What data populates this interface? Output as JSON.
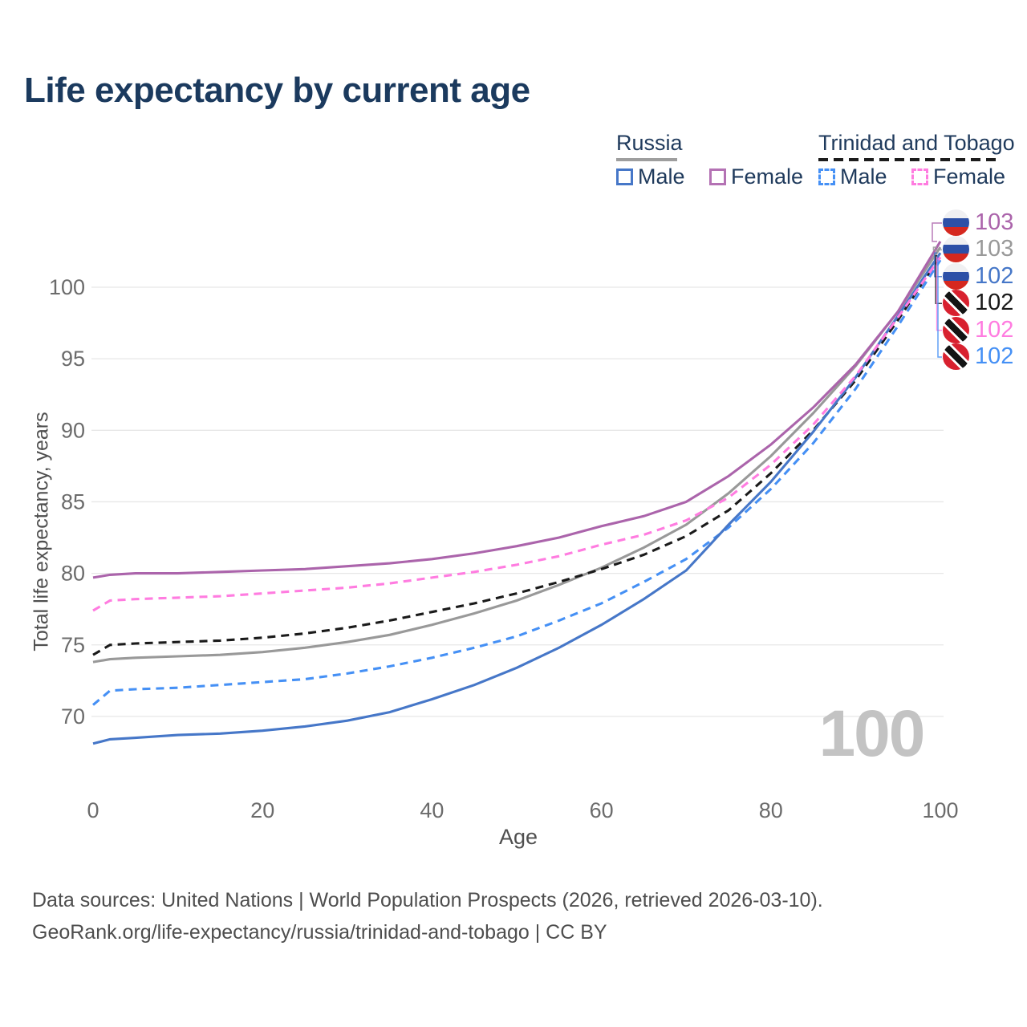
{
  "title": "Life expectancy by current age",
  "legend": {
    "groups": [
      {
        "country": "Russia",
        "line_style": "solid",
        "underline_color": "#9e9e9e",
        "items": [
          {
            "label": "Male",
            "color": "#4677c8"
          },
          {
            "label": "Female",
            "color": "#b472b4"
          }
        ]
      },
      {
        "country": "Trinidad and Tobago",
        "line_style": "dashed",
        "underline_color": "#1c1c1c",
        "items": [
          {
            "label": "Male",
            "color": "#4590f5"
          },
          {
            "label": "Female",
            "color": "#ff7ce0"
          }
        ]
      }
    ]
  },
  "watermark": "100",
  "footer": {
    "line1": "Data sources: United Nations | World Population Prospects (2026, retrieved 2026-03-10).",
    "line2": "GeoRank.org/life-expectancy/russia/trinidad-and-tobago | CC BY"
  },
  "colors": {
    "title_text": "#1b3a5e",
    "tick_text": "#6b6b6b",
    "axis_title_text": "#4f4f4f",
    "gridline": "#e7e7e7",
    "watermark": "#c3c3c3"
  },
  "chart_data": {
    "type": "line",
    "title": "Life expectancy by current age",
    "xlabel": "Age",
    "ylabel": "Total life expectancy, years",
    "xlim": [
      0,
      100
    ],
    "ylim": [
      67,
      104.5
    ],
    "x_ticks": [
      0,
      20,
      40,
      60,
      80,
      100
    ],
    "y_ticks": [
      70,
      75,
      80,
      85,
      90,
      95,
      100
    ],
    "grid": "horizontal",
    "legend_position": "top-right",
    "x": [
      0,
      2,
      5,
      10,
      15,
      20,
      25,
      30,
      35,
      40,
      45,
      50,
      55,
      60,
      65,
      70,
      75,
      80,
      85,
      90,
      95,
      100
    ],
    "series": [
      {
        "name": "Russia Female",
        "country": "Russia",
        "sex": "Female",
        "color": "#ab64ab",
        "dashed": false,
        "flag": "russia",
        "end_label": "103",
        "values": [
          79.7,
          79.9,
          80.0,
          80.0,
          80.1,
          80.2,
          80.3,
          80.5,
          80.7,
          81.0,
          81.4,
          81.9,
          82.5,
          83.3,
          84.0,
          85.0,
          86.8,
          89.0,
          91.6,
          94.6,
          98.3,
          103.2
        ]
      },
      {
        "name": "Russia Both sexes",
        "country": "Russia",
        "sex": "Both",
        "color": "#999999",
        "dashed": false,
        "flag": "russia",
        "end_label": "103",
        "values": [
          73.8,
          74.0,
          74.1,
          74.2,
          74.3,
          74.5,
          74.8,
          75.2,
          75.7,
          76.4,
          77.2,
          78.1,
          79.2,
          80.4,
          81.8,
          83.4,
          85.6,
          88.2,
          91.2,
          94.5,
          98.3,
          102.8
        ]
      },
      {
        "name": "Russia Male",
        "country": "Russia",
        "sex": "Male",
        "color": "#4677c8",
        "dashed": false,
        "flag": "russia",
        "end_label": "102",
        "values": [
          68.1,
          68.4,
          68.5,
          68.7,
          68.8,
          69.0,
          69.3,
          69.7,
          70.3,
          71.2,
          72.2,
          73.4,
          74.8,
          76.4,
          78.2,
          80.2,
          83.4,
          86.4,
          89.9,
          93.7,
          98.0,
          102.4
        ]
      },
      {
        "name": "Trinidad and Tobago Both sexes",
        "country": "Trinidad and Tobago",
        "sex": "Both",
        "color": "#1a1a1a",
        "dashed": true,
        "flag": "tt",
        "end_label": "102",
        "values": [
          74.3,
          75.0,
          75.1,
          75.2,
          75.3,
          75.5,
          75.8,
          76.2,
          76.7,
          77.3,
          77.9,
          78.6,
          79.4,
          80.3,
          81.3,
          82.6,
          84.4,
          87.0,
          90.0,
          93.5,
          97.7,
          102.2
        ]
      },
      {
        "name": "Trinidad and Tobago Female",
        "country": "Trinidad and Tobago",
        "sex": "Female",
        "color": "#ff7ce0",
        "dashed": true,
        "flag": "tt",
        "end_label": "102",
        "values": [
          77.4,
          78.1,
          78.2,
          78.3,
          78.4,
          78.6,
          78.8,
          79.0,
          79.3,
          79.7,
          80.1,
          80.6,
          81.2,
          82.0,
          82.7,
          83.7,
          85.3,
          87.6,
          90.4,
          93.8,
          97.9,
          102.1
        ]
      },
      {
        "name": "Trinidad and Tobago Male",
        "country": "Trinidad and Tobago",
        "sex": "Male",
        "color": "#4590f5",
        "dashed": true,
        "flag": "tt",
        "end_label": "102",
        "values": [
          70.8,
          71.8,
          71.9,
          72.0,
          72.2,
          72.4,
          72.6,
          73.0,
          73.5,
          74.1,
          74.8,
          75.6,
          76.7,
          77.9,
          79.4,
          81.0,
          83.2,
          85.9,
          89.1,
          92.9,
          97.3,
          101.9
        ]
      }
    ]
  }
}
